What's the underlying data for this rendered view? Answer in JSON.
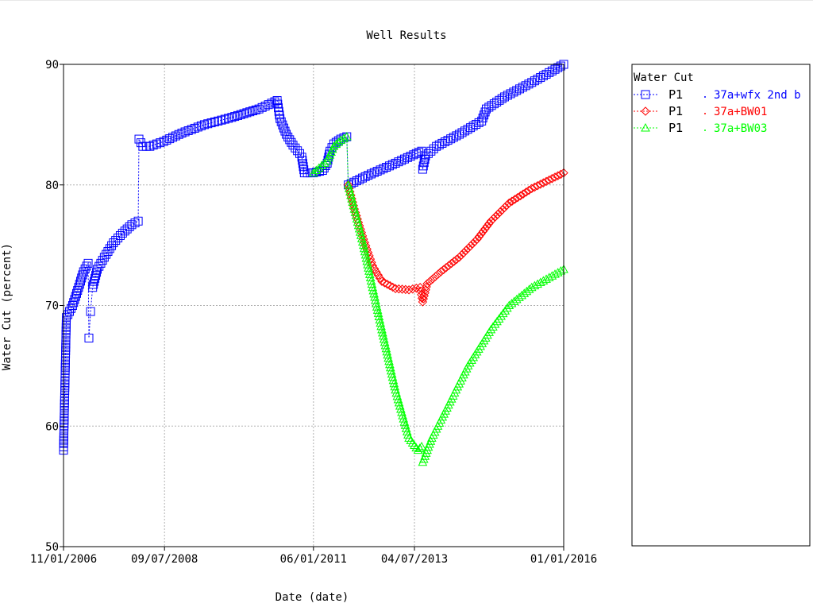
{
  "colors": {
    "series_1": "#0000ff",
    "series_2": "#ff0000",
    "series_3": "#00ff00",
    "grid": "#b0b0b0",
    "axis": "#000000"
  },
  "chart_data": {
    "type": "line",
    "title": "Well Results",
    "xlabel": "Date (date)",
    "ylabel": "Water Cut (percent)",
    "x_axis_type": "date",
    "xlim": [
      "2006-11-01",
      "2016-01-01"
    ],
    "ylim": [
      50,
      90
    ],
    "x_ticks": [
      "11/01/2006",
      "09/07/2008",
      "06/01/2011",
      "04/07/2013",
      "01/01/2016"
    ],
    "y_ticks": [
      "50",
      "60",
      "70",
      "80",
      "90"
    ],
    "grid": true,
    "legend_position": "right",
    "legend": {
      "title": "Water Cut",
      "entries": [
        {
          "well": "P1",
          "case": "37a+wfx 2nd b",
          "marker": "square"
        },
        {
          "well": "P1",
          "case": "37a+BW01",
          "marker": "diamond"
        },
        {
          "well": "P1",
          "case": "37a+BW03",
          "marker": "triangle"
        }
      ]
    },
    "series": [
      {
        "name": "37a+wfx 2nd b",
        "marker": "square",
        "points": [
          [
            "2006-11-01",
            58.0
          ],
          [
            "2006-11-20",
            69.0
          ],
          [
            "2007-01-01",
            70.0
          ],
          [
            "2007-02-10",
            71.5
          ],
          [
            "2007-03-15",
            72.8
          ],
          [
            "2007-04-15",
            73.5
          ],
          [
            "2007-04-20",
            67.3
          ],
          [
            "2007-05-01",
            69.5
          ],
          [
            "2007-05-15",
            71.5
          ],
          [
            "2007-06-15",
            73.0
          ],
          [
            "2007-08-01",
            74.0
          ],
          [
            "2007-10-01",
            75.2
          ],
          [
            "2007-12-01",
            76.0
          ],
          [
            "2008-02-01",
            76.7
          ],
          [
            "2008-03-15",
            77.0
          ],
          [
            "2008-03-20",
            83.8
          ],
          [
            "2008-04-15",
            83.2
          ],
          [
            "2008-06-01",
            83.2
          ],
          [
            "2008-09-01",
            83.6
          ],
          [
            "2009-01-01",
            84.3
          ],
          [
            "2009-06-01",
            85.0
          ],
          [
            "2009-12-01",
            85.6
          ],
          [
            "2010-06-01",
            86.3
          ],
          [
            "2010-09-15",
            86.9
          ],
          [
            "2010-10-01",
            87.0
          ],
          [
            "2010-10-20",
            85.5
          ],
          [
            "2010-12-01",
            84.2
          ],
          [
            "2011-01-15",
            83.3
          ],
          [
            "2011-03-01",
            82.6
          ],
          [
            "2011-03-15",
            82.3
          ],
          [
            "2011-04-01",
            81.0
          ],
          [
            "2011-06-01",
            81.0
          ],
          [
            "2011-08-01",
            81.2
          ],
          [
            "2011-09-01",
            81.8
          ],
          [
            "2011-09-20",
            82.8
          ],
          [
            "2011-10-15",
            83.4
          ],
          [
            "2011-12-01",
            83.8
          ],
          [
            "2012-01-10",
            84.0
          ],
          [
            "2012-01-20",
            80.0
          ],
          [
            "2012-06-01",
            80.8
          ],
          [
            "2012-12-01",
            81.8
          ],
          [
            "2013-04-01",
            82.5
          ],
          [
            "2013-05-25",
            82.8
          ],
          [
            "2013-06-01",
            81.3
          ],
          [
            "2013-06-20",
            82.4
          ],
          [
            "2013-09-01",
            83.2
          ],
          [
            "2014-02-01",
            84.2
          ],
          [
            "2014-07-01",
            85.3
          ],
          [
            "2014-08-01",
            86.3
          ],
          [
            "2014-12-01",
            87.3
          ],
          [
            "2015-06-01",
            88.5
          ],
          [
            "2016-01-01",
            90.0
          ]
        ]
      },
      {
        "name": "37a+BW01",
        "marker": "diamond",
        "points": [
          [
            "2012-01-20",
            80.0
          ],
          [
            "2012-03-01",
            78.0
          ],
          [
            "2012-05-01",
            75.5
          ],
          [
            "2012-07-01",
            73.3
          ],
          [
            "2012-09-01",
            72.0
          ],
          [
            "2012-12-01",
            71.4
          ],
          [
            "2013-03-01",
            71.3
          ],
          [
            "2013-05-15",
            71.5
          ],
          [
            "2013-06-01",
            70.3
          ],
          [
            "2013-07-01",
            71.8
          ],
          [
            "2013-10-01",
            72.8
          ],
          [
            "2014-02-01",
            74.0
          ],
          [
            "2014-06-01",
            75.5
          ],
          [
            "2014-09-01",
            77.0
          ],
          [
            "2015-01-01",
            78.5
          ],
          [
            "2015-06-01",
            79.7
          ],
          [
            "2016-01-01",
            81.0
          ]
        ]
      },
      {
        "name": "37a+BW03",
        "marker": "triangle",
        "points": [
          [
            "2011-06-01",
            81.0
          ],
          [
            "2011-09-01",
            82.0
          ],
          [
            "2011-10-15",
            83.2
          ],
          [
            "2011-12-01",
            83.7
          ],
          [
            "2012-01-10",
            84.0
          ],
          [
            "2012-01-20",
            80.0
          ],
          [
            "2012-03-01",
            78.0
          ],
          [
            "2012-05-01",
            75.0
          ],
          [
            "2012-07-01",
            71.5
          ],
          [
            "2012-09-01",
            68.0
          ],
          [
            "2012-12-01",
            63.0
          ],
          [
            "2013-03-01",
            59.0
          ],
          [
            "2013-05-01",
            58.0
          ],
          [
            "2013-05-25",
            58.3
          ],
          [
            "2013-06-01",
            57.0
          ],
          [
            "2013-08-01",
            59.0
          ],
          [
            "2013-12-01",
            62.0
          ],
          [
            "2014-04-01",
            65.0
          ],
          [
            "2014-09-01",
            68.0
          ],
          [
            "2015-01-01",
            70.0
          ],
          [
            "2015-06-01",
            71.5
          ],
          [
            "2016-01-01",
            73.0
          ]
        ]
      }
    ]
  }
}
